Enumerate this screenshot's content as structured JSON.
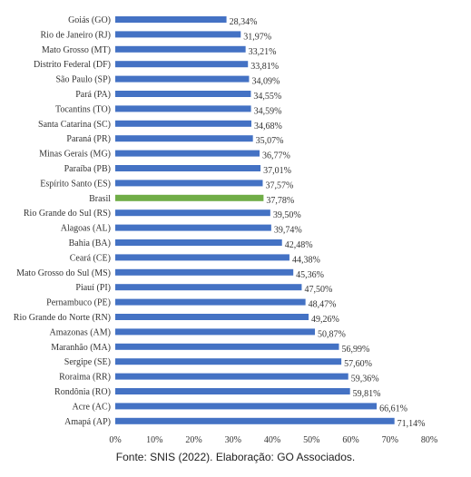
{
  "chart_data": {
    "type": "bar",
    "orientation": "horizontal",
    "categories": [
      "Goiás (GO)",
      "Rio de Janeiro (RJ)",
      "Mato Grosso (MT)",
      "Distrito Federal (DF)",
      "São Paulo (SP)",
      "Pará (PA)",
      "Tocantins (TO)",
      "Santa Catarina (SC)",
      "Paraná (PR)",
      "Minas Gerais (MG)",
      "Paraíba (PB)",
      "Espírito Santo (ES)",
      "Brasil",
      "Rio Grande do Sul (RS)",
      "Alagoas (AL)",
      "Bahia (BA)",
      "Ceará (CE)",
      "Mato Grosso do Sul (MS)",
      "Piauí (PI)",
      "Pernambuco (PE)",
      "Rio Grande do Norte (RN)",
      "Amazonas (AM)",
      "Maranhão (MA)",
      "Sergipe (SE)",
      "Roraima (RR)",
      "Rondônia (RO)",
      "Acre (AC)",
      "Amapá (AP)"
    ],
    "values": [
      28.34,
      31.97,
      33.21,
      33.81,
      34.09,
      34.55,
      34.59,
      34.68,
      35.07,
      36.77,
      37.01,
      37.57,
      37.78,
      39.5,
      39.74,
      42.48,
      44.38,
      45.36,
      47.5,
      48.47,
      49.26,
      50.87,
      56.99,
      57.6,
      59.36,
      59.81,
      66.61,
      71.14
    ],
    "value_labels": [
      "28,34%",
      "31,97%",
      "33,21%",
      "33,81%",
      "34,09%",
      "34,55%",
      "34,59%",
      "34,68%",
      "35,07%",
      "36,77%",
      "37,01%",
      "37,57%",
      "37,78%",
      "39,50%",
      "39,74%",
      "42,48%",
      "44,38%",
      "45,36%",
      "47,50%",
      "48,47%",
      "49,26%",
      "50,87%",
      "56,99%",
      "57,60%",
      "59,36%",
      "59,81%",
      "66,61%",
      "71,14%"
    ],
    "xlim": [
      0,
      80
    ],
    "xticks": [
      0,
      10,
      20,
      30,
      40,
      50,
      60,
      70,
      80
    ],
    "xtick_labels": [
      "0%",
      "10%",
      "20%",
      "30%",
      "40%",
      "50%",
      "60%",
      "70%",
      "80%"
    ],
    "bar_color": "#4472c4",
    "highlight_category": "Brasil",
    "highlight_color": "#70ad47",
    "grid": false,
    "legend": "none"
  },
  "source_note": "Fonte: SNIS (2022). Elaboração: GO Associados."
}
